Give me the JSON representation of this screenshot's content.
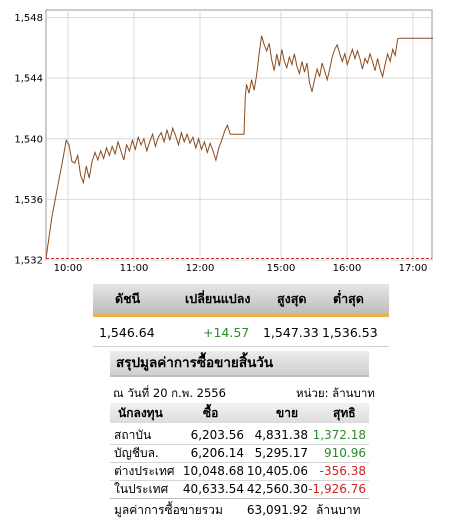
{
  "chart_data": {
    "type": "line",
    "y_ticks": [
      "1,532",
      "1,536",
      "1,540",
      "1,544",
      "1,548"
    ],
    "x_ticks": [
      "10:00",
      "11:00",
      "12:00",
      "15:00",
      "16:00",
      "17:00"
    ],
    "ylim": [
      1532,
      1548.5
    ],
    "grid": true,
    "line_color": "#8b4a1e",
    "previous_close": 1532.07,
    "series": [
      {
        "points": [
          [
            0,
            1532.1
          ],
          [
            2,
            1534.8
          ],
          [
            4,
            1536.8
          ],
          [
            6,
            1538.8
          ],
          [
            7,
            1539.9
          ],
          [
            8,
            1539.6
          ],
          [
            9,
            1538.5
          ],
          [
            10,
            1538.4
          ],
          [
            11,
            1538.9
          ],
          [
            12,
            1537.6
          ],
          [
            13,
            1537.1
          ],
          [
            14,
            1538.2
          ],
          [
            15,
            1537.4
          ],
          [
            16,
            1538.5
          ],
          [
            17,
            1539.1
          ],
          [
            18,
            1538.6
          ],
          [
            19,
            1539.2
          ],
          [
            20,
            1538.7
          ],
          [
            21,
            1539.4
          ],
          [
            22,
            1538.9
          ],
          [
            23,
            1539.5
          ],
          [
            24,
            1539.0
          ],
          [
            25,
            1539.8
          ],
          [
            26,
            1539.2
          ],
          [
            27,
            1538.6
          ],
          [
            28,
            1539.6
          ],
          [
            29,
            1539.2
          ],
          [
            30,
            1539.9
          ],
          [
            31,
            1539.3
          ],
          [
            32,
            1540.1
          ],
          [
            33,
            1539.6
          ],
          [
            34,
            1540.0
          ],
          [
            35,
            1539.2
          ],
          [
            36,
            1539.8
          ],
          [
            37,
            1540.3
          ],
          [
            38,
            1539.5
          ],
          [
            39,
            1540.1
          ],
          [
            40,
            1540.4
          ],
          [
            41,
            1539.8
          ],
          [
            42,
            1540.6
          ],
          [
            43,
            1539.9
          ],
          [
            44,
            1540.7
          ],
          [
            45,
            1540.2
          ],
          [
            46,
            1539.6
          ],
          [
            47,
            1540.4
          ],
          [
            48,
            1539.8
          ],
          [
            49,
            1540.3
          ],
          [
            50,
            1539.7
          ],
          [
            51,
            1540.1
          ],
          [
            52,
            1539.4
          ],
          [
            53,
            1540.0
          ],
          [
            54,
            1539.3
          ],
          [
            55,
            1539.8
          ],
          [
            56,
            1539.1
          ],
          [
            57,
            1539.7
          ],
          [
            58,
            1539.2
          ],
          [
            59,
            1538.6
          ],
          [
            60,
            1539.4
          ],
          [
            61,
            1539.9
          ],
          [
            62,
            1540.5
          ],
          [
            63,
            1540.9
          ],
          [
            64,
            1540.3
          ],
          [
            200,
            1540.3
          ],
          [
            200.5,
            1542.8
          ],
          [
            201,
            1543.6
          ],
          [
            202,
            1543.0
          ],
          [
            203,
            1543.9
          ],
          [
            204,
            1543.2
          ],
          [
            205,
            1544.2
          ],
          [
            206,
            1545.6
          ],
          [
            207,
            1546.8
          ],
          [
            208,
            1546.2
          ],
          [
            209,
            1545.8
          ],
          [
            210,
            1546.3
          ],
          [
            211,
            1545.2
          ],
          [
            212,
            1544.5
          ],
          [
            213,
            1545.6
          ],
          [
            214,
            1544.8
          ],
          [
            215,
            1545.9
          ],
          [
            216,
            1545.1
          ],
          [
            217,
            1544.7
          ],
          [
            218,
            1545.4
          ],
          [
            219,
            1544.9
          ],
          [
            220,
            1545.6
          ],
          [
            221,
            1544.8
          ],
          [
            222,
            1544.3
          ],
          [
            223,
            1545.1
          ],
          [
            224,
            1544.4
          ],
          [
            225,
            1545.0
          ],
          [
            226,
            1543.7
          ],
          [
            227,
            1543.1
          ],
          [
            228,
            1543.9
          ],
          [
            229,
            1544.6
          ],
          [
            230,
            1544.1
          ],
          [
            231,
            1545.0
          ],
          [
            232,
            1544.5
          ],
          [
            233,
            1543.9
          ],
          [
            234,
            1544.6
          ],
          [
            235,
            1545.4
          ],
          [
            236,
            1545.9
          ],
          [
            237,
            1546.2
          ],
          [
            238,
            1545.6
          ],
          [
            239,
            1545.1
          ],
          [
            240,
            1545.6
          ],
          [
            241,
            1544.9
          ],
          [
            242,
            1545.4
          ],
          [
            243,
            1545.9
          ],
          [
            244,
            1545.3
          ],
          [
            245,
            1545.8
          ],
          [
            246,
            1545.3
          ],
          [
            247,
            1544.6
          ],
          [
            248,
            1545.3
          ],
          [
            249,
            1545.0
          ],
          [
            250,
            1545.6
          ],
          [
            251,
            1545.1
          ],
          [
            252,
            1544.5
          ],
          [
            253,
            1545.3
          ],
          [
            254,
            1544.6
          ],
          [
            255,
            1544.1
          ],
          [
            256,
            1544.9
          ],
          [
            257,
            1545.6
          ],
          [
            258,
            1545.1
          ],
          [
            259,
            1545.9
          ],
          [
            260,
            1545.5
          ],
          [
            261,
            1546.6
          ],
          [
            262,
            1546.64
          ],
          [
            275,
            1546.64
          ]
        ]
      }
    ]
  },
  "index_table": {
    "headers": [
      "ดัชนี",
      "เปลี่ยนแปลง",
      "สูงสุด",
      "ต่ำสุด"
    ],
    "index": "1,546.64",
    "change": "+14.57",
    "high": "1,547.33",
    "low": "1,536.53",
    "change_color": "#2e8b2e",
    "accent_color": "#e8b248"
  },
  "summary": {
    "title": "สรุปมูลค่าการซื้อขายสิ้นวัน",
    "date": "ณ วันที่ 20 ก.พ. 2556",
    "unit": "หน่วย: ล้านบาท",
    "headers": [
      "นักลงทุน",
      "ซื้อ",
      "ขาย",
      "สุทธิ"
    ],
    "rows": [
      {
        "name": "สถาบัน",
        "buy": "6,203.56",
        "sell": "4,831.38",
        "net": "1,372.18"
      },
      {
        "name": "บัญชีบล.",
        "buy": "6,206.14",
        "sell": "5,295.17",
        "net": "910.96"
      },
      {
        "name": "ต่างประเทศ",
        "buy": "10,048.68",
        "sell": "10,405.06",
        "net": "-356.38"
      },
      {
        "name": "ในประเทศ",
        "buy": "40,633.54",
        "sell": "42,560.30",
        "net": "-1,926.76"
      }
    ],
    "positive_color": "#2e8b2e",
    "negative_color": "#d42020",
    "total_label": "มูลค่าการซื้อขายรวม",
    "total_value": "63,091.92",
    "total_unit": "ล้านบาท"
  }
}
